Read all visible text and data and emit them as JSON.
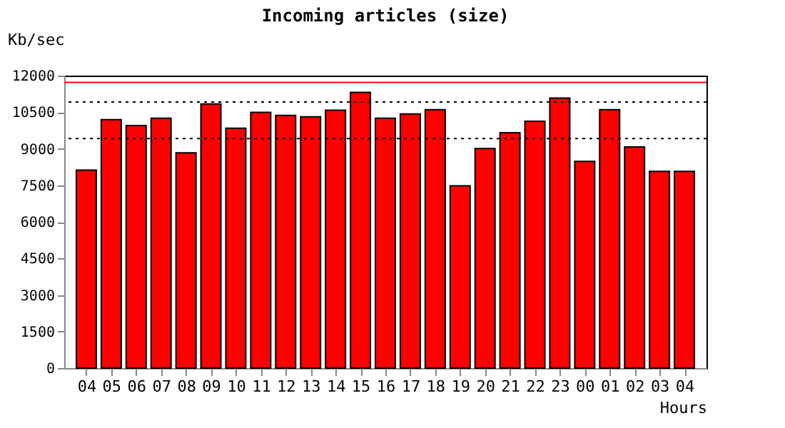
{
  "chart_data": {
    "type": "bar",
    "title": "Incoming articles (size)",
    "xlabel": "Hours",
    "ylabel": "Kb/sec",
    "categories": [
      "04",
      "05",
      "06",
      "07",
      "08",
      "09",
      "10",
      "11",
      "12",
      "13",
      "14",
      "15",
      "16",
      "17",
      "18",
      "19",
      "20",
      "21",
      "22",
      "23",
      "00",
      "01",
      "02",
      "03",
      "04"
    ],
    "series": [
      {
        "color": "#ff0000",
        "values": [
          8120,
          10190,
          9950,
          10250,
          8830,
          10840,
          9840,
          10490,
          10370,
          10310,
          10580,
          11310,
          10250,
          10430,
          10600,
          7480,
          9010,
          9660,
          10130,
          11080,
          8480,
          10600,
          9070,
          8070,
          8070
        ]
      }
    ],
    "ylim": [
      0,
      12000
    ],
    "yticks": [
      0,
      1500,
      3000,
      4500,
      6000,
      7500,
      9000,
      10500,
      12000
    ],
    "ref_lines": [
      {
        "axis": "y",
        "value": 11720,
        "color": "#ff0000",
        "line_style": "solid"
      },
      {
        "axis": "y",
        "value": 10920,
        "color": "#000000",
        "line_style": "dotted"
      },
      {
        "axis": "y",
        "value": 9420,
        "color": "#000000",
        "line_style": "dotted"
      }
    ],
    "grid": false,
    "legend": false
  }
}
